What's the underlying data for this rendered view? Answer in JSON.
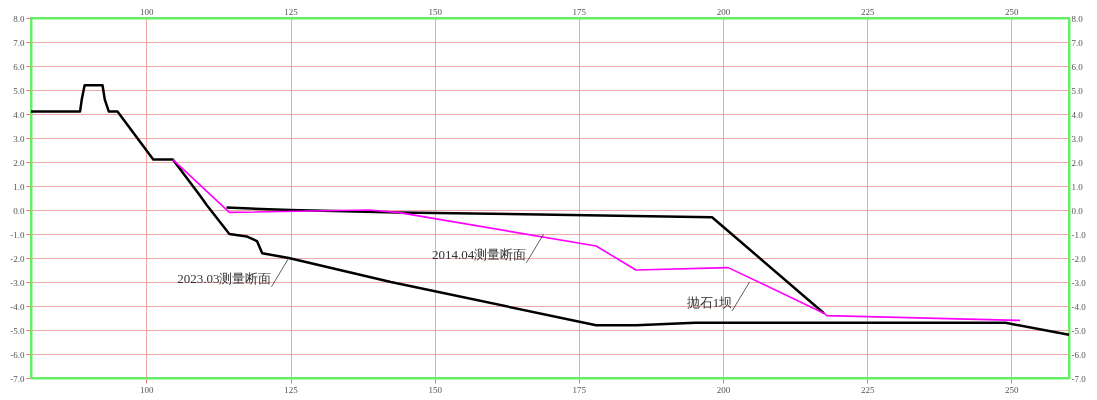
{
  "chart_data": {
    "type": "line",
    "xlim": [
      80,
      260
    ],
    "xticks": [
      100,
      125,
      150,
      175,
      200,
      225,
      250
    ],
    "x2lim": [
      80,
      260
    ],
    "x2ticks": [
      100,
      125,
      150,
      175,
      200,
      225,
      250
    ],
    "ylim": [
      -7,
      8
    ],
    "yticks": [
      {
        "value": -7,
        "label": "-7.0"
      },
      {
        "value": -6,
        "label": "-6.0"
      },
      {
        "value": -5,
        "label": "-5.0"
      },
      {
        "value": -4,
        "label": "-4.0"
      },
      {
        "value": -3,
        "label": "-3.0"
      },
      {
        "value": -2,
        "label": "-2.0"
      },
      {
        "value": -1,
        "label": "-1.0"
      },
      {
        "value": 0,
        "label": "0.0"
      },
      {
        "value": 1,
        "label": "1.0"
      },
      {
        "value": 2,
        "label": "2.0"
      },
      {
        "value": 3,
        "label": "3.0"
      },
      {
        "value": 4,
        "label": "4.0"
      },
      {
        "value": 5,
        "label": "5.0"
      },
      {
        "value": 6,
        "label": "6.0"
      },
      {
        "value": 7,
        "label": "7.0"
      },
      {
        "value": 8,
        "label": "8.0"
      }
    ],
    "y2lim": [
      -7,
      8
    ],
    "y2ticks": [
      {
        "value": -7,
        "label": "-7.0"
      },
      {
        "value": -6,
        "label": "-6.0"
      },
      {
        "value": -5,
        "label": "-5.0"
      },
      {
        "value": -4,
        "label": "-4.0"
      },
      {
        "value": -3,
        "label": "-3.0"
      },
      {
        "value": -2,
        "label": "-2.0"
      },
      {
        "value": -1,
        "label": "-1.0"
      },
      {
        "value": 0,
        "label": "0.0"
      },
      {
        "value": 1,
        "label": "1.0"
      },
      {
        "value": 2,
        "label": "2.0"
      },
      {
        "value": 3,
        "label": "3.0"
      },
      {
        "value": 4,
        "label": "4.0"
      },
      {
        "value": 5,
        "label": "5.0"
      },
      {
        "value": 6,
        "label": "6.0"
      },
      {
        "value": 7,
        "label": "7.0"
      },
      {
        "value": 8,
        "label": "8.0"
      }
    ],
    "grid": true,
    "marker": "none",
    "line_style": "solid",
    "series": [
      {
        "color": "#000000",
        "x": [
          80,
          88.5,
          88.8,
          89.3,
          92.4,
          92.8,
          93.5,
          95.0,
          101.2,
          104.6,
          109.3,
          110.5,
          114.4,
          117.4,
          119.2,
          120.1,
          124.7,
          142.4,
          178,
          184.9,
          195.2,
          249,
          260
        ],
        "values": [
          4.1,
          4.1,
          4.6,
          5.2,
          5.2,
          4.6,
          4.1,
          4.1,
          2.1,
          2.1,
          0.6,
          0.2,
          -1.0,
          -1.1,
          -1.3,
          -1.8,
          -2.0,
          -3.0,
          -4.8,
          -4.8,
          -4.7,
          -4.7,
          -5.2
        ]
      },
      {
        "color": "#000000",
        "x": [
          113.9,
          125,
          143.6,
          198.1,
          217.5
        ],
        "values": [
          0.1,
          0.0,
          -0.1,
          -0.3,
          -4.3
        ]
      },
      {
        "color": "#ff00ff",
        "x": [
          104.6,
          114.4,
          138.5,
          143.6,
          178,
          184.9,
          200.9,
          217.5,
          218,
          251.5
        ],
        "values": [
          2.1,
          -0.1,
          0.0,
          -0.1,
          -1.5,
          -2.5,
          -2.4,
          -4.3,
          -4.4,
          -4.6
        ]
      }
    ],
    "annotations": [
      {
        "text": "2014.04测量断面",
        "x": 168.9,
        "y": -1.0
      },
      {
        "text": "抛石1坝",
        "x": 204.6,
        "y": -3.0
      },
      {
        "text": "2023.03测量断面",
        "x": 124.7,
        "y": -2.0
      }
    ]
  }
}
